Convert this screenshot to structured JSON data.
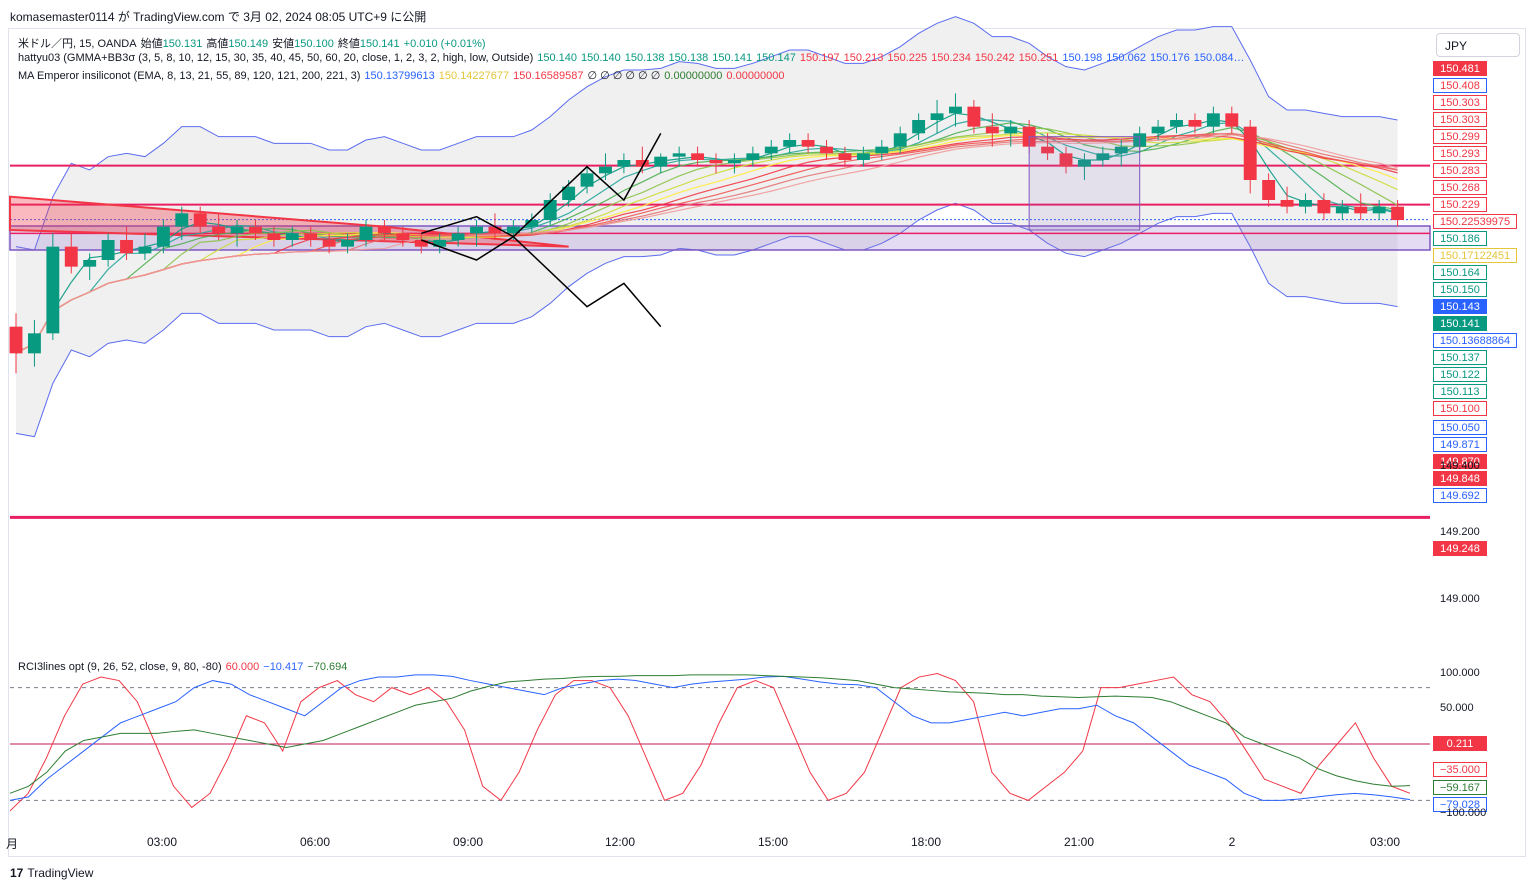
{
  "header": {
    "publish_line": "komasemaster0114 が TradingView.com で 3月 02, 2024 08:05 UTC+9 に公開"
  },
  "legend": {
    "symbol": "米ドル／円, 15, OANDA",
    "open_label": "始値",
    "open": "150.131",
    "high_label": "高値",
    "high": "150.149",
    "low_label": "安値",
    "low": "150.100",
    "close_label": "終値",
    "close": "150.141",
    "change": "+0.010 (+0.01%)",
    "indicator1_name": "hattyu03 (GMMA+BB3σ (3, 5, 8, 10, 12, 15, 30, 35, 40, 45, 50, 60, 20, close, 1, 2, 3, 2, high, low, Outside)",
    "indicator1_values": [
      {
        "v": "150.140",
        "c": "#089981"
      },
      {
        "v": "150.140",
        "c": "#089981"
      },
      {
        "v": "150.138",
        "c": "#089981"
      },
      {
        "v": "150.138",
        "c": "#089981"
      },
      {
        "v": "150.141",
        "c": "#089981"
      },
      {
        "v": "150.147",
        "c": "#089981"
      },
      {
        "v": "150.197",
        "c": "#f23645"
      },
      {
        "v": "150.213",
        "c": "#f23645"
      },
      {
        "v": "150.225",
        "c": "#f23645"
      },
      {
        "v": "150.234",
        "c": "#f23645"
      },
      {
        "v": "150.242",
        "c": "#f23645"
      },
      {
        "v": "150.251",
        "c": "#f23645"
      },
      {
        "v": "150.198",
        "c": "#2962ff"
      },
      {
        "v": "150.062",
        "c": "#2962ff"
      },
      {
        "v": "150.176",
        "c": "#2962ff"
      },
      {
        "v": "150.084…",
        "c": "#2962ff"
      }
    ],
    "indicator2_name": "MA Emperor insiliconot (EMA, 8, 13, 21, 55, 89, 120, 121, 200, 221, 3)",
    "indicator2_values": [
      {
        "v": "150.13799613",
        "c": "#2962ff"
      },
      {
        "v": "150.14227677",
        "c": "#e3c63a"
      },
      {
        "v": "150.16589587",
        "c": "#f23645"
      },
      {
        "v": "∅ ∅ ∅ ∅ ∅ ∅",
        "c": "#131722"
      },
      {
        "v": "0.00000000",
        "c": "#2e7d32"
      },
      {
        "v": "0.00000000",
        "c": "#f23645"
      }
    ],
    "indicator3_name": "RCI3lines opt (9, 26, 52, close, 9, 80, -80)",
    "indicator3_values": [
      {
        "v": "60.000",
        "c": "#f23645"
      },
      {
        "v": "−10.417",
        "c": "#2962ff"
      },
      {
        "v": "−70.694",
        "c": "#2e7d32"
      }
    ]
  },
  "currency_button": "JPY",
  "price_labels": [
    {
      "v": "150.481",
      "bg": "#f23645",
      "fg": "#ffffff",
      "border": "#f23645"
    },
    {
      "v": "150.408",
      "bg": "#ffffff",
      "fg": "#f23645",
      "border": "#2962ff"
    },
    {
      "v": "150.303",
      "bg": "#ffffff",
      "fg": "#f23645",
      "border": "#f23645"
    },
    {
      "v": "150.303",
      "bg": "#ffffff",
      "fg": "#f23645",
      "border": "#f23645"
    },
    {
      "v": "150.299",
      "bg": "#ffffff",
      "fg": "#f23645",
      "border": "#f23645"
    },
    {
      "v": "150.293",
      "bg": "#ffffff",
      "fg": "#f23645",
      "border": "#f23645"
    },
    {
      "v": "150.283",
      "bg": "#ffffff",
      "fg": "#f23645",
      "border": "#f23645"
    },
    {
      "v": "150.268",
      "bg": "#ffffff",
      "fg": "#f23645",
      "border": "#f23645"
    },
    {
      "v": "150.229",
      "bg": "#ffffff",
      "fg": "#f23645",
      "border": "#f23645"
    },
    {
      "v": "150.22539975",
      "bg": "#ffffff",
      "fg": "#f23645",
      "border": "#f23645"
    },
    {
      "v": "150.186",
      "bg": "#ffffff",
      "fg": "#089981",
      "border": "#089981"
    },
    {
      "v": "150.17122451",
      "bg": "#ffffff",
      "fg": "#e3c63a",
      "border": "#e3c63a"
    },
    {
      "v": "150.164",
      "bg": "#ffffff",
      "fg": "#089981",
      "border": "#089981"
    },
    {
      "v": "150.150",
      "bg": "#ffffff",
      "fg": "#089981",
      "border": "#089981"
    },
    {
      "v": "150.143",
      "bg": "#2962ff",
      "fg": "#ffffff",
      "border": "#2962ff"
    },
    {
      "v": "150.141",
      "bg": "#089981",
      "fg": "#ffffff",
      "border": "#089981"
    },
    {
      "v": "150.13688864",
      "bg": "#ffffff",
      "fg": "#2962ff",
      "border": "#2962ff"
    },
    {
      "v": "150.137",
      "bg": "#ffffff",
      "fg": "#089981",
      "border": "#089981"
    },
    {
      "v": "150.122",
      "bg": "#ffffff",
      "fg": "#089981",
      "border": "#089981"
    },
    {
      "v": "150.113",
      "bg": "#ffffff",
      "fg": "#089981",
      "border": "#089981"
    },
    {
      "v": "150.100",
      "bg": "#ffffff",
      "fg": "#f23645",
      "border": "#f23645"
    },
    {
      "v": "150.050",
      "bg": "#ffffff",
      "fg": "#2962ff",
      "border": "#2962ff"
    },
    {
      "v": "149.871",
      "bg": "#ffffff",
      "fg": "#2962ff",
      "border": "#2962ff"
    },
    {
      "v": "149.870",
      "bg": "#f23645",
      "fg": "#ffffff",
      "border": "#f23645"
    },
    {
      "v": "149.848",
      "bg": "#f23645",
      "fg": "#ffffff",
      "border": "#f23645"
    },
    {
      "v": "149.692",
      "bg": "#ffffff",
      "fg": "#2962ff",
      "border": "#2962ff"
    },
    {
      "v": "149.248",
      "bg": "#f23645",
      "fg": "#ffffff",
      "border": "#f23645"
    }
  ],
  "rci_labels": [
    {
      "v": "0.211",
      "bg": "#f23645",
      "fg": "#ffffff",
      "border": "#f23645"
    },
    {
      "v": "−35.000",
      "bg": "#ffffff",
      "fg": "#f23645",
      "border": "#f23645"
    },
    {
      "v": "−59.167",
      "bg": "#ffffff",
      "fg": "#2e7d32",
      "border": "#2e7d32"
    },
    {
      "v": "−79.028",
      "bg": "#ffffff",
      "fg": "#2962ff",
      "border": "#2962ff"
    }
  ],
  "chart_data": [
    {
      "type": "candlestick",
      "title": "米ドル／円, 15, OANDA",
      "y_ticks": [
        "149.400",
        "149.200",
        "149.000"
      ],
      "ylim": [
        148.88,
        150.62
      ],
      "x_ticks": [
        "月",
        "03:00",
        "06:00",
        "09:00",
        "12:00",
        "15:00",
        "18:00",
        "21:00",
        "2",
        "03:00"
      ],
      "candles": [
        [
          149.82,
          149.86,
          149.68,
          149.74
        ],
        [
          149.74,
          149.84,
          149.7,
          149.8
        ],
        [
          149.8,
          150.1,
          149.78,
          150.06
        ],
        [
          150.06,
          150.1,
          149.98,
          150.0
        ],
        [
          150.0,
          150.04,
          149.96,
          150.02
        ],
        [
          150.02,
          150.1,
          150.0,
          150.08
        ],
        [
          150.08,
          150.12,
          150.02,
          150.04
        ],
        [
          150.04,
          150.1,
          150.02,
          150.06
        ],
        [
          150.06,
          150.14,
          150.04,
          150.12
        ],
        [
          150.12,
          150.18,
          150.08,
          150.16
        ],
        [
          150.16,
          150.18,
          150.1,
          150.12
        ],
        [
          150.12,
          150.16,
          150.08,
          150.1
        ],
        [
          150.1,
          150.14,
          150.06,
          150.12
        ],
        [
          150.12,
          150.14,
          150.08,
          150.1
        ],
        [
          150.1,
          150.12,
          150.06,
          150.08
        ],
        [
          150.08,
          150.12,
          150.06,
          150.1
        ],
        [
          150.1,
          150.12,
          150.06,
          150.08
        ],
        [
          150.08,
          150.1,
          150.04,
          150.06
        ],
        [
          150.06,
          150.1,
          150.04,
          150.08
        ],
        [
          150.08,
          150.14,
          150.06,
          150.12
        ],
        [
          150.12,
          150.14,
          150.08,
          150.1
        ],
        [
          150.1,
          150.12,
          150.06,
          150.08
        ],
        [
          150.08,
          150.1,
          150.04,
          150.06
        ],
        [
          150.06,
          150.1,
          150.04,
          150.08
        ],
        [
          150.08,
          150.12,
          150.06,
          150.1
        ],
        [
          150.1,
          150.14,
          150.06,
          150.12
        ],
        [
          150.12,
          150.16,
          150.08,
          150.1
        ],
        [
          150.1,
          150.14,
          150.08,
          150.12
        ],
        [
          150.12,
          150.16,
          150.1,
          150.14
        ],
        [
          150.14,
          150.22,
          150.12,
          150.2
        ],
        [
          150.2,
          150.26,
          150.18,
          150.24
        ],
        [
          150.24,
          150.3,
          150.22,
          150.28
        ],
        [
          150.28,
          150.34,
          150.26,
          150.3
        ],
        [
          150.3,
          150.34,
          150.28,
          150.32
        ],
        [
          150.32,
          150.36,
          150.28,
          150.3
        ],
        [
          150.3,
          150.34,
          150.28,
          150.33
        ],
        [
          150.33,
          150.36,
          150.3,
          150.34
        ],
        [
          150.34,
          150.36,
          150.3,
          150.32
        ],
        [
          150.32,
          150.34,
          150.28,
          150.31
        ],
        [
          150.31,
          150.34,
          150.28,
          150.32
        ],
        [
          150.32,
          150.36,
          150.3,
          150.34
        ],
        [
          150.34,
          150.38,
          150.32,
          150.36
        ],
        [
          150.36,
          150.4,
          150.34,
          150.38
        ],
        [
          150.38,
          150.4,
          150.34,
          150.36
        ],
        [
          150.36,
          150.38,
          150.32,
          150.34
        ],
        [
          150.34,
          150.36,
          150.3,
          150.32
        ],
        [
          150.32,
          150.36,
          150.3,
          150.34
        ],
        [
          150.34,
          150.38,
          150.32,
          150.36
        ],
        [
          150.36,
          150.42,
          150.34,
          150.4
        ],
        [
          150.4,
          150.46,
          150.38,
          150.44
        ],
        [
          150.44,
          150.5,
          150.4,
          150.46
        ],
        [
          150.46,
          150.52,
          150.42,
          150.48
        ],
        [
          150.48,
          150.5,
          150.4,
          150.42
        ],
        [
          150.42,
          150.46,
          150.36,
          150.4
        ],
        [
          150.4,
          150.44,
          150.36,
          150.42
        ],
        [
          150.42,
          150.44,
          150.34,
          150.36
        ],
        [
          150.36,
          150.4,
          150.32,
          150.34
        ],
        [
          150.34,
          150.36,
          150.28,
          150.3
        ],
        [
          150.3,
          150.34,
          150.26,
          150.32
        ],
        [
          150.32,
          150.36,
          150.3,
          150.34
        ],
        [
          150.34,
          150.38,
          150.3,
          150.36
        ],
        [
          150.36,
          150.42,
          150.34,
          150.4
        ],
        [
          150.4,
          150.44,
          150.38,
          150.42
        ],
        [
          150.42,
          150.46,
          150.4,
          150.44
        ],
        [
          150.44,
          150.46,
          150.4,
          150.42
        ],
        [
          150.42,
          150.48,
          150.4,
          150.46
        ],
        [
          150.46,
          150.48,
          150.4,
          150.42
        ],
        [
          150.42,
          150.44,
          150.22,
          150.26
        ],
        [
          150.26,
          150.28,
          150.18,
          150.2
        ],
        [
          150.2,
          150.24,
          150.16,
          150.18
        ],
        [
          150.18,
          150.22,
          150.16,
          150.2
        ],
        [
          150.2,
          150.22,
          150.14,
          150.16
        ],
        [
          150.16,
          150.2,
          150.14,
          150.18
        ],
        [
          150.18,
          150.22,
          150.14,
          150.16
        ],
        [
          150.16,
          150.2,
          150.14,
          150.18
        ],
        [
          150.18,
          150.2,
          150.12,
          150.14
        ]
      ]
    },
    {
      "type": "line",
      "title": "RCI3lines opt (9, 26, 52, close, 9, 80, -80)",
      "y_ticks": [
        "100.000",
        "50.000",
        "−100.000"
      ],
      "ylim": [
        -105,
        105
      ],
      "series": [
        {
          "values": [
            -95,
            -70,
            -20,
            40,
            85,
            95,
            90,
            60,
            0,
            -60,
            -90,
            -70,
            -20,
            40,
            30,
            -10,
            60,
            80,
            90,
            70,
            60,
            80,
            70,
            80,
            60,
            20,
            -60,
            -80,
            -40,
            20,
            70,
            90,
            90,
            80,
            40,
            -20,
            -80,
            -70,
            -30,
            30,
            80,
            90,
            80,
            20,
            -40,
            -80,
            -70,
            -40,
            20,
            80,
            95,
            100,
            90,
            60,
            -40,
            -70,
            -80,
            -60,
            -40,
            -10,
            80,
            80,
            85,
            90,
            95,
            70,
            60,
            30,
            -10,
            -50,
            -60,
            -70,
            -30,
            0,
            30,
            -20,
            -60,
            -70
          ]
        },
        {
          "values": [
            -80,
            -75,
            -50,
            -30,
            -10,
            10,
            30,
            40,
            50,
            60,
            80,
            90,
            85,
            70,
            60,
            50,
            40,
            60,
            80,
            90,
            95,
            95,
            98,
            98,
            96,
            90,
            85,
            80,
            75,
            70,
            80,
            85,
            90,
            92,
            90,
            85,
            80,
            85,
            88,
            90,
            92,
            95,
            96,
            92,
            88,
            85,
            84,
            80,
            60,
            40,
            30,
            30,
            35,
            40,
            45,
            40,
            45,
            50,
            50,
            55,
            40,
            30,
            10,
            -10,
            -30,
            -40,
            -50,
            -70,
            -80,
            -80,
            -78,
            -75,
            -72,
            -70,
            -72,
            -75,
            -79
          ]
        },
        {
          "values": [
            -70,
            -60,
            -40,
            -10,
            5,
            10,
            15,
            15,
            15,
            18,
            20,
            15,
            10,
            5,
            0,
            -5,
            0,
            5,
            15,
            25,
            35,
            45,
            55,
            60,
            65,
            75,
            82,
            88,
            90,
            92,
            93,
            95,
            96,
            96,
            97,
            97,
            97,
            98,
            98,
            98,
            98,
            97,
            96,
            95,
            94,
            92,
            90,
            85,
            80,
            78,
            76,
            74,
            73,
            72,
            70,
            70,
            68,
            67,
            66,
            67,
            68,
            67,
            66,
            60,
            50,
            40,
            30,
            10,
            0,
            -10,
            -20,
            -35,
            -45,
            -52,
            -57,
            -60,
            -59
          ]
        }
      ]
    }
  ]
}
